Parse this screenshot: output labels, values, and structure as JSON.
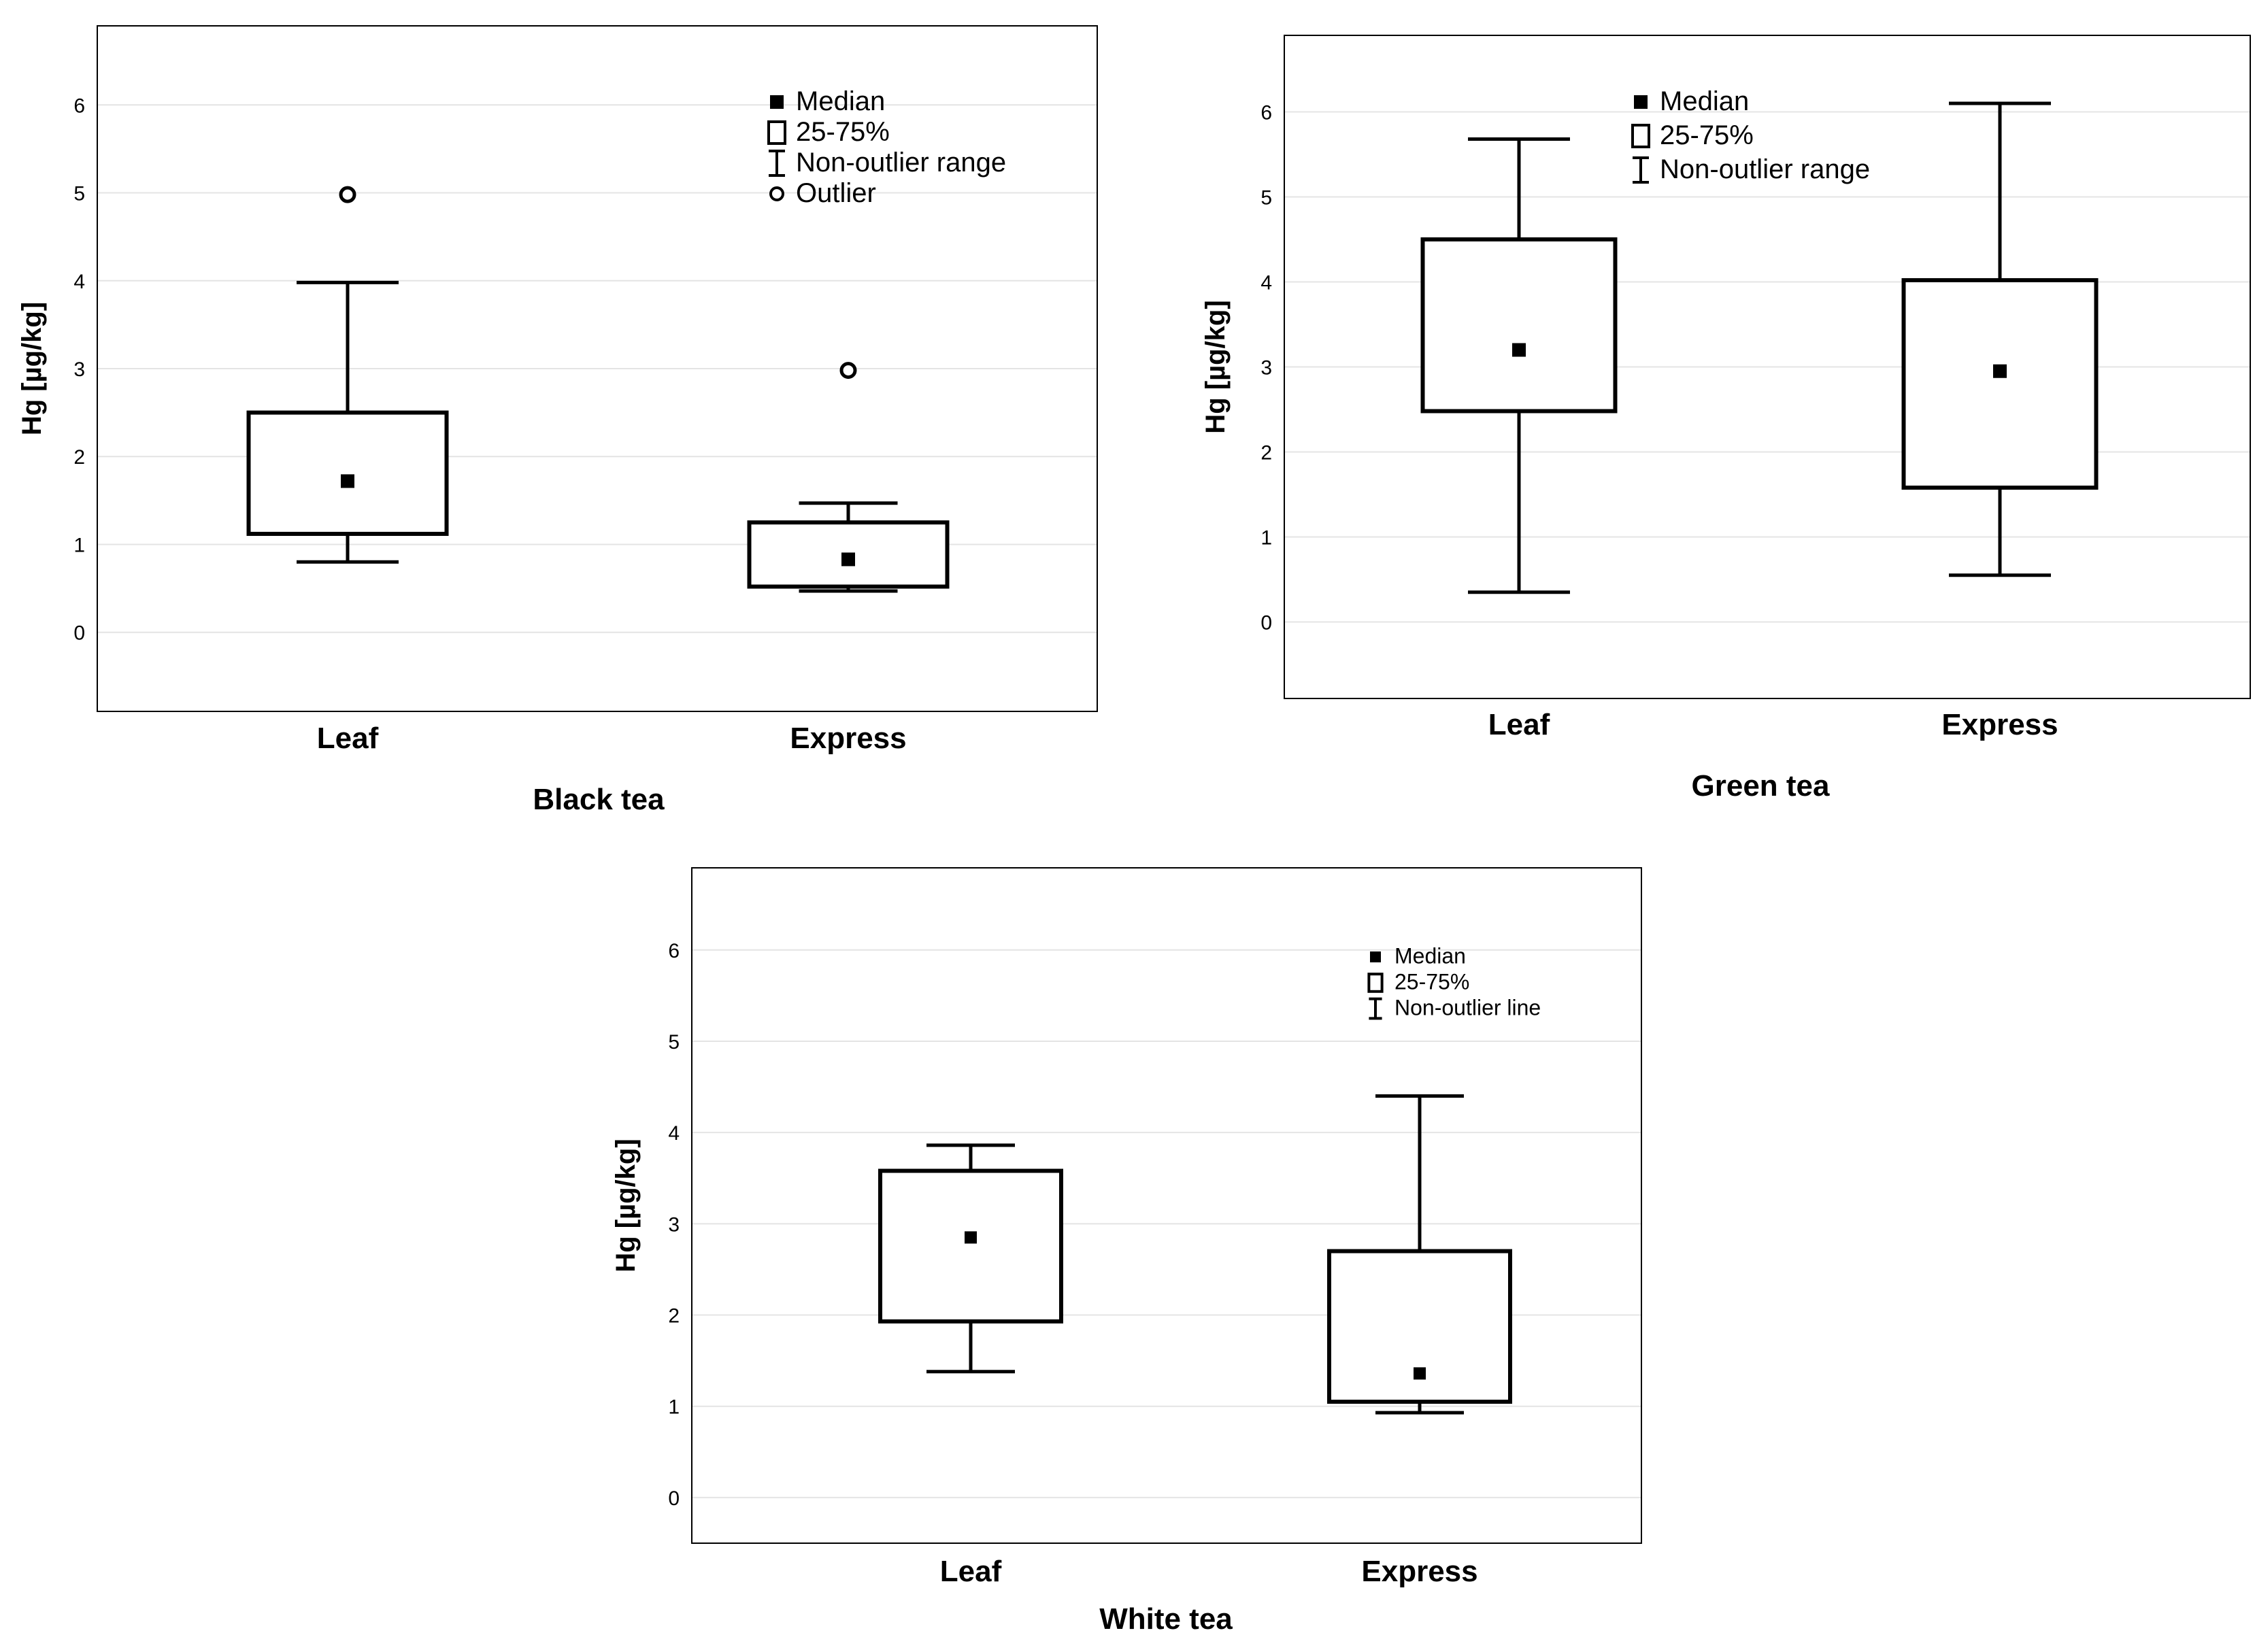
{
  "chart_data": [
    {
      "type": "box",
      "title": "Black tea",
      "ylabel": "Hg [µg/kg]",
      "ylim": [
        -0.9,
        6.9
      ],
      "yticks": [
        0,
        1,
        2,
        3,
        4,
        5,
        6
      ],
      "categories": [
        "Leaf",
        "Express"
      ],
      "boxes": [
        {
          "category": "Leaf",
          "whisker_low": 0.8,
          "q1": 1.12,
          "median": 1.72,
          "q3": 2.5,
          "whisker_high": 3.98,
          "outliers": [
            4.98
          ]
        },
        {
          "category": "Express",
          "whisker_low": 0.47,
          "q1": 0.52,
          "median": 0.83,
          "q3": 1.25,
          "whisker_high": 1.47,
          "outliers": [
            2.98
          ]
        }
      ],
      "legend": {
        "median": "Median",
        "box": "25-75%",
        "whisker": "Non-outlier range",
        "outlier": "Outlier"
      }
    },
    {
      "type": "box",
      "title": "Green tea",
      "ylabel": "Hg [µg/kg]",
      "ylim": [
        -0.9,
        6.9
      ],
      "yticks": [
        0,
        1,
        2,
        3,
        4,
        5,
        6
      ],
      "categories": [
        "Leaf",
        "Express"
      ],
      "boxes": [
        {
          "category": "Leaf",
          "whisker_low": 0.35,
          "q1": 2.48,
          "median": 3.2,
          "q3": 4.5,
          "whisker_high": 5.68,
          "outliers": []
        },
        {
          "category": "Express",
          "whisker_low": 0.55,
          "q1": 1.58,
          "median": 2.95,
          "q3": 4.02,
          "whisker_high": 6.1,
          "outliers": []
        }
      ],
      "legend": {
        "median": "Median",
        "box": "25-75%",
        "whisker": "Non-outlier range"
      }
    },
    {
      "type": "box",
      "title": "White tea",
      "ylabel": "Hg [µg/kg]",
      "ylim": [
        -0.5,
        6.9
      ],
      "yticks": [
        0,
        1,
        2,
        3,
        4,
        5,
        6
      ],
      "categories": [
        "Leaf",
        "Express"
      ],
      "boxes": [
        {
          "category": "Leaf",
          "whisker_low": 1.38,
          "q1": 1.93,
          "median": 2.85,
          "q3": 3.58,
          "whisker_high": 3.86,
          "outliers": []
        },
        {
          "category": "Express",
          "whisker_low": 0.93,
          "q1": 1.05,
          "median": 1.36,
          "q3": 2.7,
          "whisker_high": 4.4,
          "outliers": []
        }
      ],
      "legend": {
        "median": "Median",
        "box": "25-75%",
        "whisker": "Non-outlier line"
      }
    }
  ]
}
